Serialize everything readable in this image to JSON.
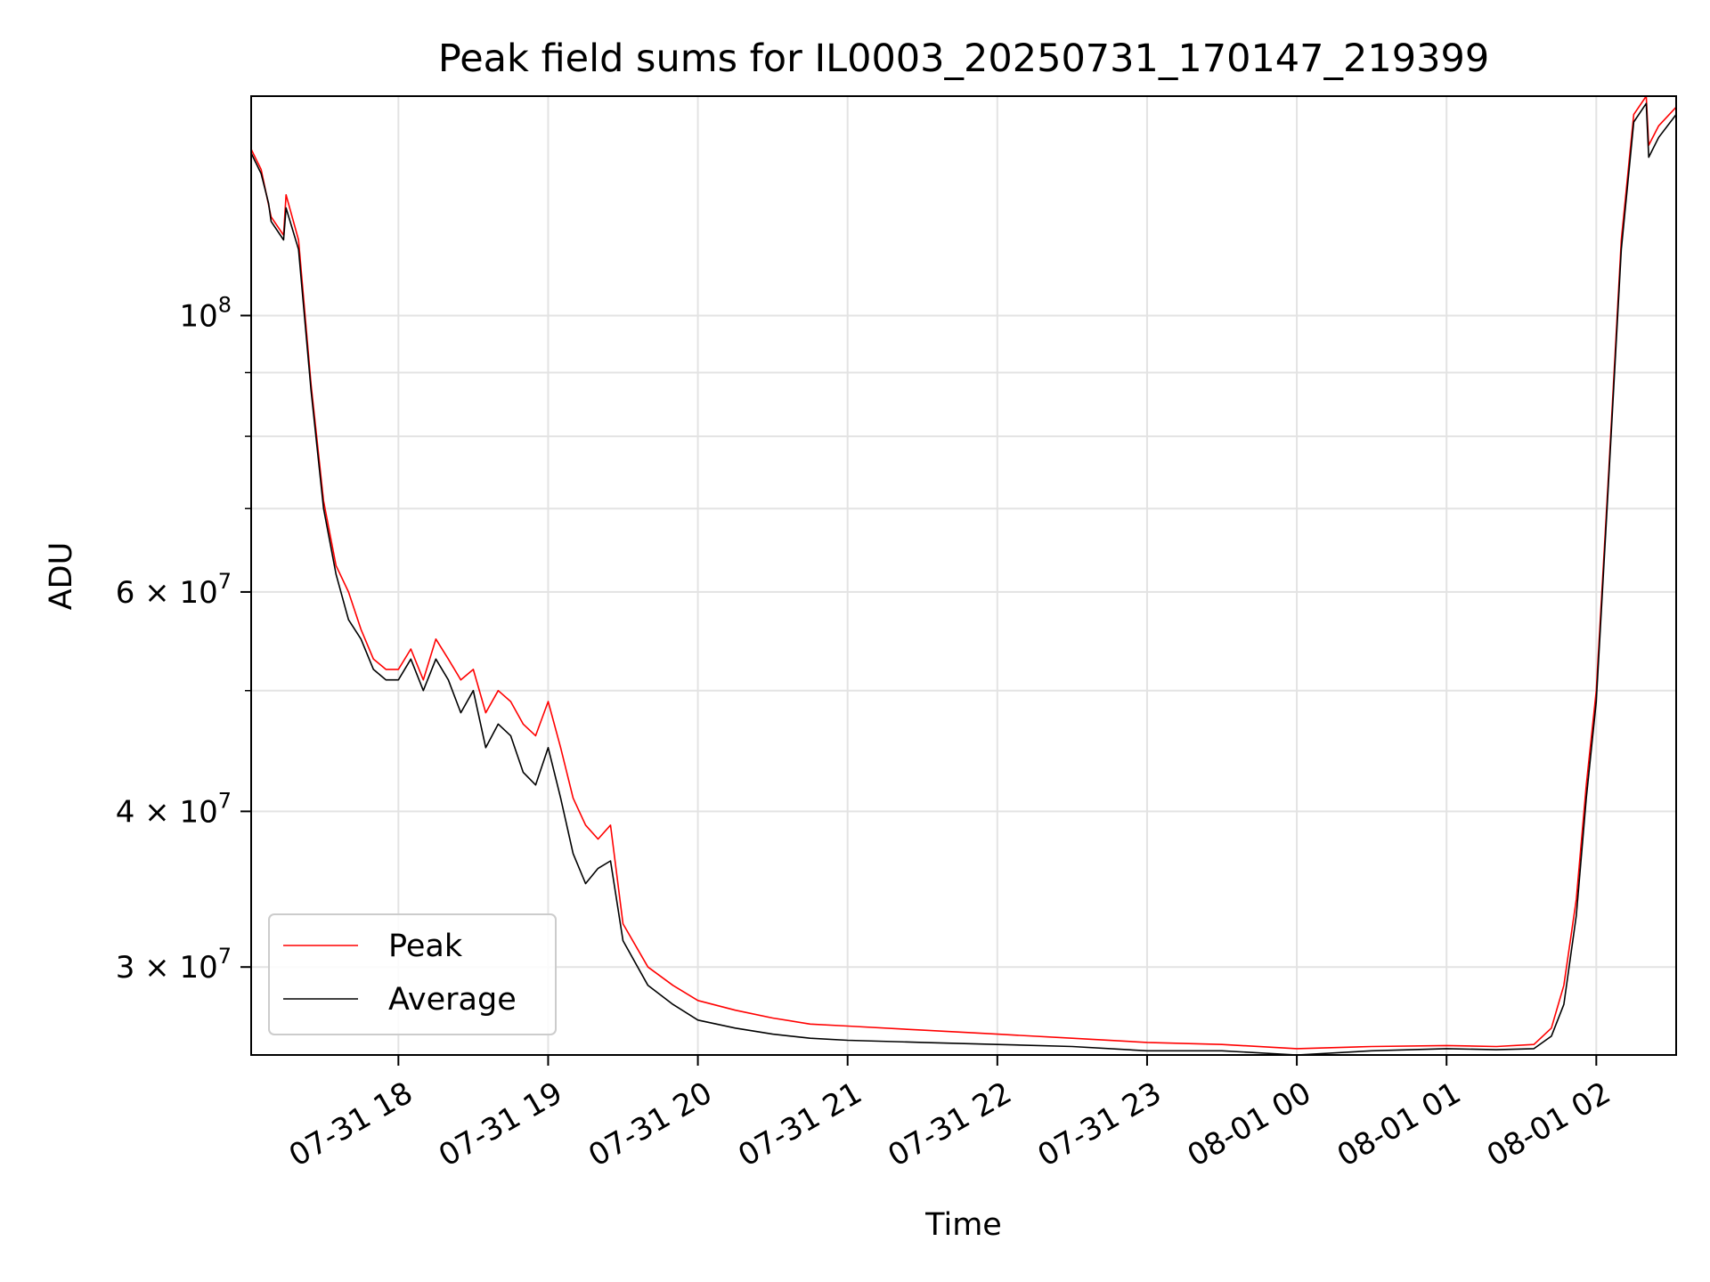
{
  "chart_data": {
    "type": "line",
    "title": "Peak field sums for IL0003_20250731_170147_219399",
    "xlabel": "Time",
    "ylabel": "ADU",
    "yscale": "log",
    "grid": true,
    "legend_position": "lower-left",
    "xlim": [
      "2025-07-31 17:01",
      "2025-08-01 02:32"
    ],
    "ylim": [
      25500000,
      150000000
    ],
    "x_ticks": [
      {
        "value": "2025-07-31 18:00",
        "label": "07-31 18"
      },
      {
        "value": "2025-07-31 19:00",
        "label": "07-31 19"
      },
      {
        "value": "2025-07-31 20:00",
        "label": "07-31 20"
      },
      {
        "value": "2025-07-31 21:00",
        "label": "07-31 21"
      },
      {
        "value": "2025-07-31 22:00",
        "label": "07-31 22"
      },
      {
        "value": "2025-07-31 23:00",
        "label": "07-31 23"
      },
      {
        "value": "2025-08-01 00:00",
        "label": "08-01 00"
      },
      {
        "value": "2025-08-01 01:00",
        "label": "08-01 01"
      },
      {
        "value": "2025-08-01 02:00",
        "label": "08-01 02"
      }
    ],
    "y_ticks": [
      {
        "value": 100000000,
        "base": "10",
        "exp": "8"
      },
      {
        "value": 60000000,
        "base": "6 × 10",
        "exp": "7"
      },
      {
        "value": 40000000,
        "base": "4 × 10",
        "exp": "7"
      },
      {
        "value": 30000000,
        "base": "3 × 10",
        "exp": "7"
      }
    ],
    "y_minor_ticks": [
      50000000,
      70000000,
      80000000,
      90000000
    ],
    "series": [
      {
        "name": "Peak",
        "color": "#ff0000",
        "x": [
          "2025-07-31 17:01",
          "2025-07-31 17:05",
          "2025-07and-31 17:08",
          "2025-07-31 17:09",
          "2025-07-31 17:14",
          "2025-07-31 17:15",
          "2025-07-31 17:20",
          "2025-07-31 17:25",
          "2025-07-31 17:30",
          "2025-07-31 17:35",
          "2025-07-31 17:40",
          "2025-07-31 17:45",
          "2025-07-31 17:50",
          "2025-07-31 17:55",
          "2025-07-31 18:00",
          "2025-07-31 18:05",
          "2025-07-31 18:10",
          "2025-07-31 18:15",
          "2025-07-31 18:20",
          "2025-07-31 18:25",
          "2025-07-31 18:30",
          "2025-07-31 18:35",
          "2025-07-31 18:40",
          "2025-07-31 18:45",
          "2025-07-31 18:50",
          "2025-07-31 18:55",
          "2025-07-31 19:00",
          "2025-07-31 19:05",
          "2025-07-31 19:10",
          "2025-07-31 19:15",
          "2025-07-31 19:20",
          "2025-07-31 19:25",
          "2025-07-31 19:30",
          "2025-07-31 19:40",
          "2025-07-31 19:50",
          "2025-07-31 20:00",
          "2025-07-31 20:15",
          "2025-07-31 20:30",
          "2025-07-31 20:45",
          "2025-07-31 21:00",
          "2025-07-31 21:30",
          "2025-07-31 22:00",
          "2025-07-31 22:30",
          "2025-07-31 23:00",
          "2025-07-31 23:30",
          "2025-08-01 00:00",
          "2025-08-01 00:30",
          "2025-08-01 01:00",
          "2025-08-01 01:20",
          "2025-08-01 01:35",
          "2025-08-01 01:42",
          "2025-08-01 01:47",
          "2025-08-01 01:52",
          "2025-08-01 01:56",
          "2025-08-01 02:00",
          "2025-08-01 02:05",
          "2025-08-01 02:10",
          "2025-08-01 02:15",
          "2025-08-01 02:20",
          "2025-08-01 02:21",
          "2025-08-01 02:25",
          "2025-08-01 02:32"
        ],
        "y": [
          136000000,
          131000000,
          124000000,
          120000000,
          116000000,
          125000000,
          115000000,
          88000000,
          71000000,
          63000000,
          60000000,
          56000000,
          53000000,
          52000000,
          52000000,
          54000000,
          51000000,
          55000000,
          53000000,
          51000000,
          52000000,
          48000000,
          50000000,
          49000000,
          47000000,
          46000000,
          49000000,
          45000000,
          41000000,
          39000000,
          38000000,
          39000000,
          32500000,
          30000000,
          29000000,
          28200000,
          27700000,
          27300000,
          27000000,
          26900000,
          26700000,
          26500000,
          26300000,
          26100000,
          26000000,
          25800000,
          25900000,
          25950000,
          25900000,
          26000000,
          26800000,
          29000000,
          34000000,
          42000000,
          50000000,
          75000000,
          115000000,
          145000000,
          150000000,
          137000000,
          142000000,
          147000000
        ]
      },
      {
        "name": "Average",
        "color": "#000000",
        "x": [
          "2025-07-31 17:01",
          "2025-07-31 17:05",
          "2025-07-31 17:08",
          "2025-07-31 17:09",
          "2025-07-31 17:14",
          "2025-07-31 17:15",
          "2025-07-31 17:20",
          "2025-07-31 17:25",
          "2025-07-31 17:30",
          "2025-07-31 17:35",
          "2025-07-31 17:40",
          "2025-07-31 17:45",
          "2025-07-31 17:50",
          "2025-07-31 17:55",
          "2025-07-31 18:00",
          "2025-07-31 18:05",
          "2025-07-31 18:10",
          "2025-07-31 18:15",
          "2025-07-31 18:20",
          "2025-07-31 18:25",
          "2025-07-31 18:30",
          "2025-07-31 18:35",
          "2025-07-31 18:40",
          "2025-07-31 18:45",
          "2025-07-31 18:50",
          "2025-07-31 18:55",
          "2025-07-31 19:00",
          "2025-07-31 19:05",
          "2025-07-31 19:10",
          "2025-07-31 19:15",
          "2025-07-31 19:20",
          "2025-07-31 19:25",
          "2025-07-31 19:30",
          "2025-07-31 19:40",
          "2025-07-31 19:50",
          "2025-07-31 20:00",
          "2025-07-31 20:15",
          "2025-07-31 20:30",
          "2025-07-31 20:45",
          "2025-07-31 21:00",
          "2025-07-31 21:30",
          "2025-07-31 22:00",
          "2025-07-31 22:30",
          "2025-07-31 23:00",
          "2025-07-31 23:30",
          "2025-08-01 00:00",
          "2025-08-01 00:30",
          "2025-08-01 01:00",
          "2025-08-01 01:20",
          "2025-08-01 01:35",
          "2025-08-01 01:42",
          "2025-08-01 01:47",
          "2025-08-01 01:52",
          "2025-08-01 01:56",
          "2025-08-01 02:00",
          "2025-08-01 02:05",
          "2025-08-01 02:10",
          "2025-08-01 02:15",
          "2025-08-01 02:20",
          "2025-08-01 02:21",
          "2025-08-01 02:25",
          "2025-08-01 02:32"
        ],
        "y": [
          135000000,
          130000000,
          123000000,
          119000000,
          115000000,
          122000000,
          113000000,
          87000000,
          70000000,
          62000000,
          57000000,
          55000000,
          52000000,
          51000000,
          51000000,
          53000000,
          50000000,
          53000000,
          51000000,
          48000000,
          50000000,
          45000000,
          47000000,
          46000000,
          43000000,
          42000000,
          45000000,
          41000000,
          37000000,
          35000000,
          36000000,
          36500000,
          31500000,
          29000000,
          28000000,
          27200000,
          26800000,
          26500000,
          26300000,
          26200000,
          26100000,
          26000000,
          25900000,
          25700000,
          25700000,
          25500000,
          25700000,
          25800000,
          25750000,
          25800000,
          26400000,
          28000000,
          33000000,
          41000000,
          49000000,
          74000000,
          113000000,
          143000000,
          148000000,
          134000000,
          139000000,
          145000000
        ]
      }
    ]
  }
}
